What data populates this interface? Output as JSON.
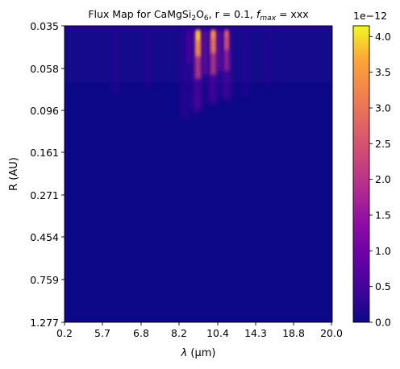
{
  "chart_data": {
    "type": "heatmap",
    "title": {
      "prefix": "Flux Map for CaMgSi",
      "sub1": "2",
      "mid": "O",
      "sub2": "6",
      "suffix": ", r = 0.1, ",
      "f": "f",
      "fsub": "max",
      "tail": " = xxx"
    },
    "xlabel": {
      "symbol": "λ",
      "unit": " (μm)"
    },
    "ylabel": "R (AU)",
    "x_ticks": [
      "0.2",
      "5.7",
      "6.8",
      "8.2",
      "10.4",
      "14.3",
      "18.8",
      "20.0"
    ],
    "y_ticks": [
      "0.035",
      "0.058",
      "0.096",
      "0.161",
      "0.271",
      "0.454",
      "0.759",
      "1.277"
    ],
    "colorbar": {
      "ticks": [
        "0.0",
        "0.5",
        "1.0",
        "1.5",
        "2.0",
        "2.5",
        "3.0",
        "3.5",
        "4.0"
      ],
      "tick_values": [
        0.0,
        0.5,
        1.0,
        1.5,
        2.0,
        2.5,
        3.0,
        3.5,
        4.0
      ],
      "max": 4.15,
      "offset_text": "1e−12",
      "colormap": "plasma"
    },
    "features": [
      {
        "x_position": 0.52,
        "peak": 4.1
      },
      {
        "x_position": 0.57,
        "peak": 3.6
      },
      {
        "x_position": 0.62,
        "peak": 3.2
      }
    ]
  },
  "colors": {
    "background": "#ffffff",
    "low": "#0d0887",
    "high": "#f0f921"
  }
}
